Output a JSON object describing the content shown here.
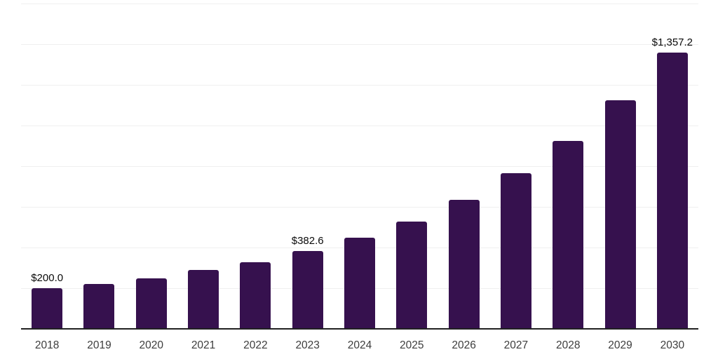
{
  "chart_data": {
    "type": "bar",
    "title": "",
    "xlabel": "",
    "ylabel": "",
    "categories": [
      "2018",
      "2019",
      "2020",
      "2021",
      "2022",
      "2023",
      "2024",
      "2025",
      "2026",
      "2027",
      "2028",
      "2029",
      "2030"
    ],
    "values": [
      200.0,
      221,
      248,
      290,
      328,
      382.6,
      448,
      528,
      634,
      765,
      924,
      1124,
      1357.2
    ],
    "bar_value_labels": [
      "$200.0",
      null,
      null,
      null,
      null,
      "$382.6",
      null,
      null,
      null,
      null,
      null,
      null,
      "$1,357.2"
    ],
    "ylim": [
      0,
      1600
    ],
    "gridline_step": 200,
    "grid": "horizontal-only",
    "legend_position": "none",
    "y_axis_tick_labels_visible": false
  },
  "colors": {
    "background": "#ffffff",
    "bar": "#36114e",
    "gridline": "#efefef",
    "axis_line": "#212121",
    "value_label_text": "#0a0a0a",
    "tick_label_text": "#3d3d3d"
  }
}
